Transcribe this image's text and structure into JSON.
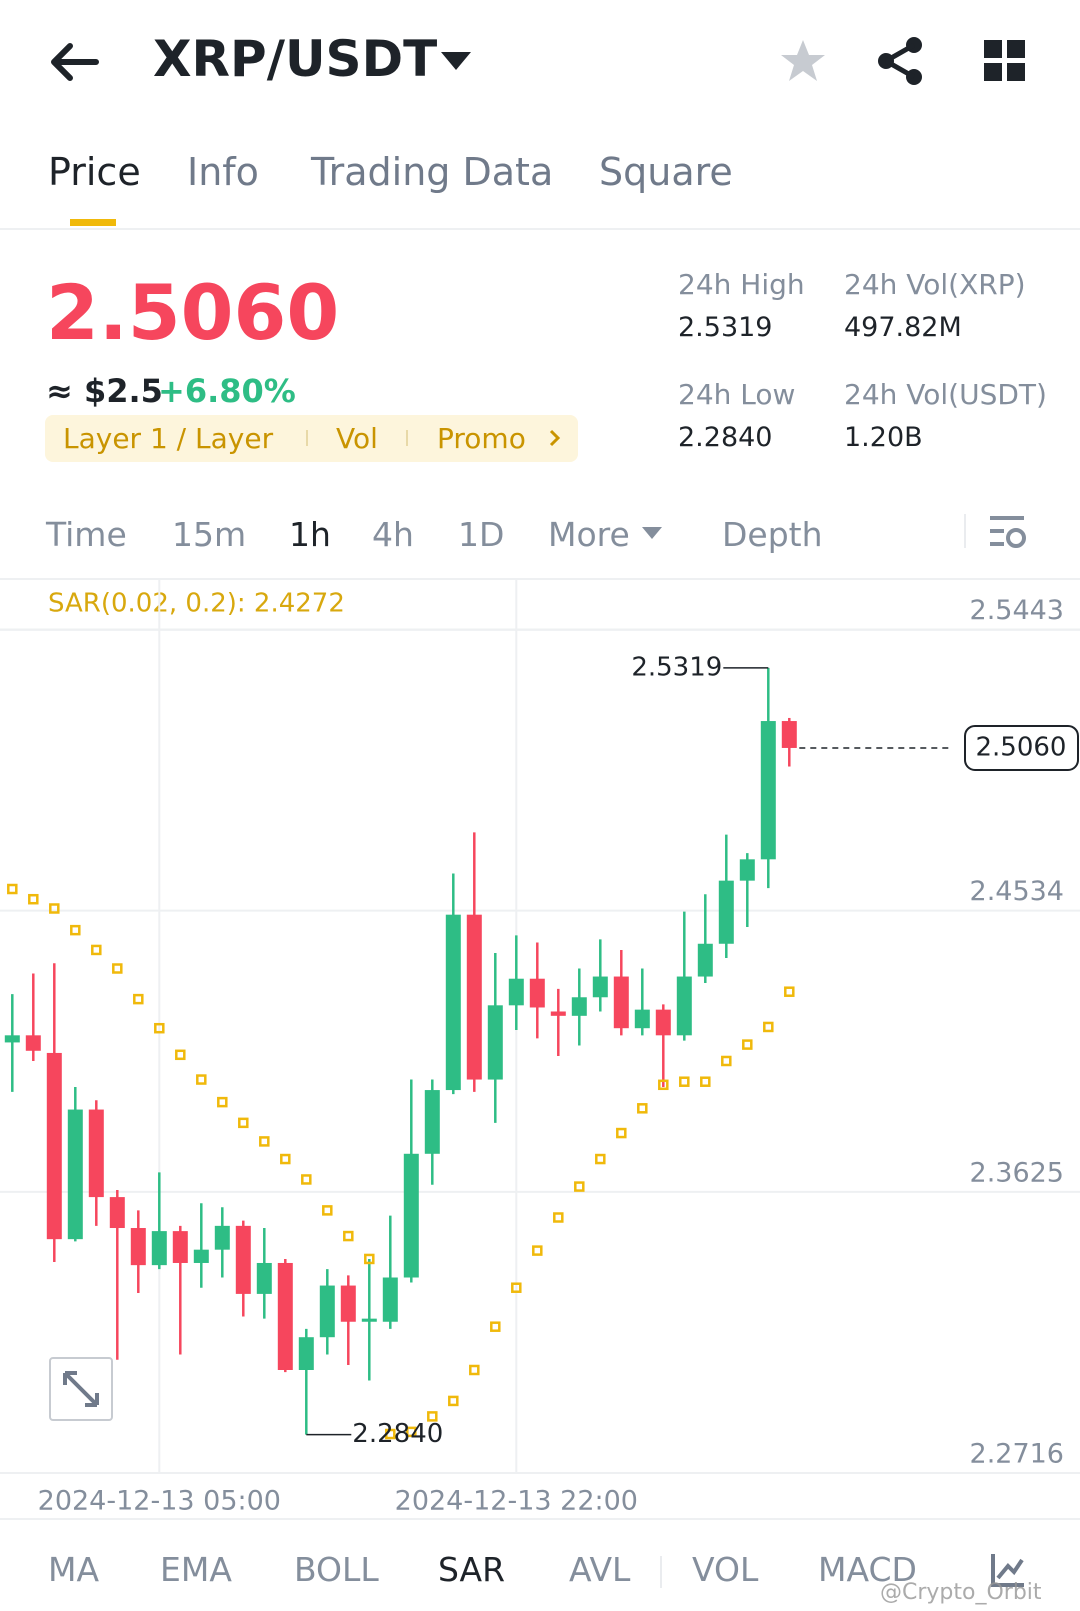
{
  "header": {
    "title": "XRP/USDT"
  },
  "tabs": [
    "Price",
    "Info",
    "Trading Data",
    "Square"
  ],
  "ticker": {
    "price": "2.5060",
    "approx": "≈ $2.5",
    "change": "+6.80%",
    "tags": [
      "Layer 1 / Layer",
      "Vol",
      "Promo"
    ],
    "stats": [
      {
        "label": "24h High",
        "value": "2.5319"
      },
      {
        "label": "24h Vol(XRP)",
        "value": "497.82M"
      },
      {
        "label": "24h Low",
        "value": "2.2840"
      },
      {
        "label": "24h Vol(USDT)",
        "value": "1.20B"
      }
    ]
  },
  "intervals": [
    "Time",
    "15m",
    "1h",
    "4h",
    "1D",
    "More",
    "Depth"
  ],
  "chart": {
    "type": "candlestick",
    "indicator": "SAR(0.02, 0.2): 2.4272",
    "up_color": "#2ebd85",
    "down_color": "#f6465d",
    "sar_color": "#f0b90b",
    "open": [
      2.4108,
      2.4131,
      2.4074,
      2.3472,
      2.3891,
      2.3608,
      2.3508,
      2.3388,
      2.3498,
      2.3395,
      2.3438,
      2.3515,
      2.3295,
      2.3395,
      2.3049,
      2.3155,
      2.3322,
      2.3205,
      2.3205,
      2.3348,
      2.3748,
      2.3954,
      2.4521,
      2.3988,
      2.4228,
      2.4314,
      2.4208,
      2.4194,
      2.4254,
      2.4321,
      2.4154,
      2.4214,
      2.4131,
      2.4321,
      2.4427,
      2.4631,
      2.47,
      2.5147
    ],
    "high": [
      2.4264,
      2.4331,
      2.4364,
      2.3964,
      2.3921,
      2.3631,
      2.3565,
      2.3688,
      2.3515,
      2.3588,
      2.3575,
      2.3532,
      2.3508,
      2.3408,
      2.3182,
      2.3375,
      2.3355,
      2.3408,
      2.3548,
      2.3988,
      2.3988,
      2.4654,
      2.4787,
      2.4397,
      2.4454,
      2.4431,
      2.4281,
      2.4347,
      2.4441,
      2.4407,
      2.4347,
      2.4231,
      2.4531,
      2.4587,
      2.478,
      2.472,
      2.5319,
      2.5157
    ],
    "low": [
      2.3948,
      2.4048,
      2.3398,
      2.3465,
      2.3515,
      2.3082,
      2.3298,
      2.3375,
      2.3099,
      2.3315,
      2.3348,
      2.3222,
      2.3215,
      2.3042,
      2.284,
      2.3099,
      2.3065,
      2.3015,
      2.3182,
      2.3332,
      2.3648,
      2.3941,
      2.3948,
      2.3848,
      2.4148,
      2.4121,
      2.4064,
      2.4098,
      2.4208,
      2.4131,
      2.4131,
      2.3964,
      2.4114,
      2.43,
      2.4381,
      2.4481,
      2.4607,
      2.5
    ],
    "close": [
      2.4131,
      2.4081,
      2.3472,
      2.3891,
      2.3608,
      2.3508,
      2.3388,
      2.3498,
      2.3395,
      2.3438,
      2.3515,
      2.3295,
      2.3395,
      2.3049,
      2.3155,
      2.3322,
      2.3205,
      2.3215,
      2.3348,
      2.3748,
      2.3954,
      2.4521,
      2.3988,
      2.4228,
      2.4314,
      2.4221,
      2.4194,
      2.4254,
      2.4321,
      2.4154,
      2.4214,
      2.4131,
      2.4321,
      2.4427,
      2.4631,
      2.47,
      2.5147,
      2.506
    ],
    "sar": [
      2.4604,
      2.4571,
      2.4541,
      2.4471,
      2.4407,
      2.4347,
      2.4248,
      2.4154,
      2.4068,
      2.3988,
      2.3915,
      2.3848,
      2.3788,
      2.3731,
      2.3665,
      2.3565,
      2.3482,
      2.3408,
      2.2842,
      2.2849,
      2.2899,
      2.2949,
      2.3049,
      2.3189,
      2.3315,
      2.3435,
      2.3542,
      2.3642,
      2.3731,
      2.3815,
      2.3895,
      2.3971,
      2.3981,
      2.3981,
      2.4048,
      2.4101,
      2.4158,
      2.4272
    ],
    "ylim": [
      2.2716,
      2.5603
    ],
    "yticks": [
      2.5443,
      2.4534,
      2.3625,
      2.2716
    ],
    "xticks": [
      {
        "value": 7,
        "label": "2024-12-13 05:00"
      },
      {
        "value": 24,
        "label": "2024-12-13 22:00"
      }
    ],
    "high_label": "2.5319",
    "high_index": 36,
    "low_label": "2.2840",
    "low_index": 14,
    "last_label": "2.5060",
    "last_index": 37
  },
  "indicators": [
    "MA",
    "EMA",
    "BOLL",
    "SAR",
    "AVL",
    "VOL",
    "MACD"
  ],
  "watermark": "@Crypto_Orbit"
}
